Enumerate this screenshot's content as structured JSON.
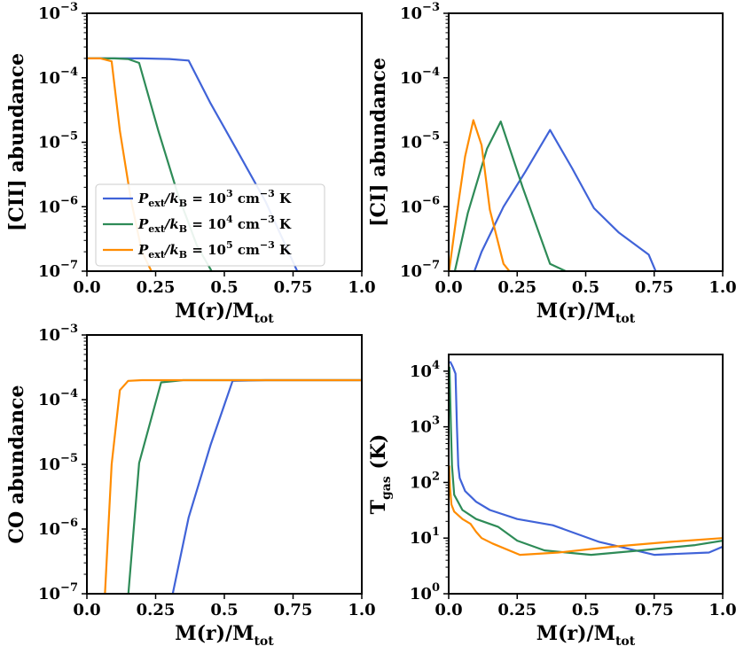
{
  "colors": {
    "blue": "#4063d8",
    "green": "#2e8b57",
    "orange": "#ff8c00"
  },
  "legend": [
    {
      "series": "blue",
      "pre": "P",
      "presub": "ext",
      "mid": "/k",
      "midsub": "B",
      "eq": " = 10",
      "exp": "3",
      "unit1": " cm",
      "unitexp": "−3",
      "unit2": " K"
    },
    {
      "series": "green",
      "pre": "P",
      "presub": "ext",
      "mid": "/k",
      "midsub": "B",
      "eq": " = 10",
      "exp": "4",
      "unit1": " cm",
      "unitexp": "−3",
      "unit2": " K"
    },
    {
      "series": "orange",
      "pre": "P",
      "presub": "ext",
      "mid": "/k",
      "midsub": "B",
      "eq": " = 10",
      "exp": "5",
      "unit1": " cm",
      "unitexp": "−3",
      "unit2": " K"
    }
  ],
  "chart_data": [
    {
      "type": "line",
      "panel": "top-left",
      "title": "",
      "xlabel": {
        "main": "M(r)/M",
        "sub": "tot"
      },
      "ylabel": "[CII] abundance",
      "xlim": [
        0,
        1.0
      ],
      "ylim_exp": [
        -7,
        -3
      ],
      "yscale": "log",
      "xticks": [
        "0.0",
        "0.25",
        "0.5",
        "0.75",
        "1.0"
      ],
      "yticks_exp": [
        "−7",
        "−6",
        "−5",
        "−4",
        "−3"
      ],
      "legend_position": "lower-center",
      "series": [
        {
          "name": "blue",
          "x": [
            0,
            0.1,
            0.2,
            0.3,
            0.37,
            0.45,
            0.55,
            0.65,
            0.77
          ],
          "y": [
            0.0002,
            0.0002,
            0.0002,
            0.000195,
            0.000185,
            4e-05,
            7e-06,
            1.2e-06,
            9e-08
          ]
        },
        {
          "name": "green",
          "x": [
            0,
            0.1,
            0.15,
            0.19,
            0.26,
            0.33,
            0.4,
            0.46
          ],
          "y": [
            0.0002,
            0.0002,
            0.000195,
            0.00017,
            1.5e-05,
            1.6e-06,
            2.5e-07,
            9e-08
          ]
        },
        {
          "name": "orange",
          "x": [
            0,
            0.05,
            0.09,
            0.12,
            0.16,
            0.2,
            0.24
          ],
          "y": [
            0.0002,
            0.0002,
            0.00018,
            1.5e-05,
            1.3e-06,
            2e-07,
            9e-08
          ]
        }
      ]
    },
    {
      "type": "line",
      "panel": "top-right",
      "title": "",
      "xlabel": {
        "main": "M(r)/M",
        "sub": "tot"
      },
      "ylabel": "[CI] abundance",
      "xlim": [
        0,
        1.0
      ],
      "ylim_exp": [
        -7,
        -3
      ],
      "yscale": "log",
      "xticks": [
        "0.0",
        "0.25",
        "0.5",
        "0.75",
        "1.0"
      ],
      "yticks_exp": [
        "−7",
        "−6",
        "−5",
        "−4",
        "−3"
      ],
      "series": [
        {
          "name": "blue",
          "x": [
            0.09,
            0.12,
            0.2,
            0.28,
            0.37,
            0.45,
            0.53,
            0.62,
            0.73,
            0.76
          ],
          "y": [
            9e-08,
            2e-07,
            1e-06,
            3.5e-06,
            1.55e-05,
            4e-06,
            9.5e-07,
            4e-07,
            1.8e-07,
            9e-08
          ]
        },
        {
          "name": "green",
          "x": [
            0.02,
            0.07,
            0.14,
            0.19,
            0.27,
            0.37,
            0.45
          ],
          "y": [
            9e-08,
            8e-07,
            8e-06,
            2.1e-05,
            2e-06,
            1.3e-07,
            9e-08
          ]
        },
        {
          "name": "orange",
          "x": [
            0.0,
            0.03,
            0.06,
            0.09,
            0.12,
            0.15,
            0.2,
            0.23
          ],
          "y": [
            9e-08,
            8e-07,
            6e-06,
            2.2e-05,
            9e-06,
            9e-07,
            1.3e-07,
            9e-08
          ]
        }
      ]
    },
    {
      "type": "line",
      "panel": "bottom-left",
      "title": "",
      "xlabel": {
        "main": "M(r)/M",
        "sub": "tot"
      },
      "ylabel": "CO abundance",
      "xlim": [
        0,
        1.0
      ],
      "ylim_exp": [
        -7,
        -3
      ],
      "yscale": "log",
      "xticks": [
        "0.0",
        "0.25",
        "0.5",
        "0.75",
        "1.0"
      ],
      "yticks_exp": [
        "−7",
        "−6",
        "−5",
        "−4",
        "−3"
      ],
      "series": [
        {
          "name": "blue",
          "x": [
            0.31,
            0.37,
            0.45,
            0.53,
            0.65,
            0.75,
            0.85,
            1.0
          ],
          "y": [
            9e-08,
            1.5e-06,
            2e-05,
            0.000195,
            0.0002,
            0.0002,
            0.0002,
            0.0002
          ]
        },
        {
          "name": "green",
          "x": [
            0.15,
            0.19,
            0.27,
            0.35,
            0.5,
            1.0
          ],
          "y": [
            9e-08,
            1.05e-05,
            0.000185,
            0.0002,
            0.0002,
            0.0002
          ]
        },
        {
          "name": "orange",
          "x": [
            0.065,
            0.09,
            0.12,
            0.15,
            0.2,
            0.3,
            1.0
          ],
          "y": [
            9e-08,
            1e-05,
            0.00014,
            0.000195,
            0.0002,
            0.0002,
            0.0002
          ]
        }
      ]
    },
    {
      "type": "line",
      "panel": "bottom-right",
      "title": "",
      "xlabel": {
        "main": "M(r)/M",
        "sub": "tot"
      },
      "ylabel": {
        "main": "T",
        "sub": "gas",
        "unit": " (K)"
      },
      "xlim": [
        0,
        1.0
      ],
      "ylim_exp": [
        0,
        4.3
      ],
      "yscale": "log",
      "xticks": [
        "0.0",
        "0.25",
        "0.5",
        "0.75",
        "1.0"
      ],
      "yticks_exp": [
        "0",
        "1",
        "2",
        "3",
        "4"
      ],
      "series": [
        {
          "name": "blue",
          "x": [
            0.005,
            0.015,
            0.025,
            0.03,
            0.035,
            0.04,
            0.06,
            0.1,
            0.15,
            0.25,
            0.38,
            0.55,
            0.75,
            0.95,
            1.0
          ],
          "y": [
            15000,
            12000,
            9000,
            1000,
            200,
            120,
            70,
            45,
            32,
            22,
            17,
            8.5,
            5,
            5.5,
            7
          ]
        },
        {
          "name": "green",
          "x": [
            0.003,
            0.008,
            0.012,
            0.02,
            0.05,
            0.1,
            0.18,
            0.25,
            0.35,
            0.52,
            0.7,
            0.9,
            1.0
          ],
          "y": [
            12000,
            1000,
            200,
            60,
            32,
            22,
            16,
            9,
            6,
            5,
            6,
            7.5,
            9
          ]
        },
        {
          "name": "orange",
          "x": [
            0.002,
            0.005,
            0.01,
            0.02,
            0.05,
            0.08,
            0.1,
            0.12,
            0.16,
            0.26,
            0.4,
            0.6,
            0.8,
            1.0
          ],
          "y": [
            200,
            80,
            40,
            30,
            22,
            18,
            13,
            10,
            8,
            5,
            5.5,
            7,
            8.5,
            10
          ]
        }
      ]
    }
  ]
}
